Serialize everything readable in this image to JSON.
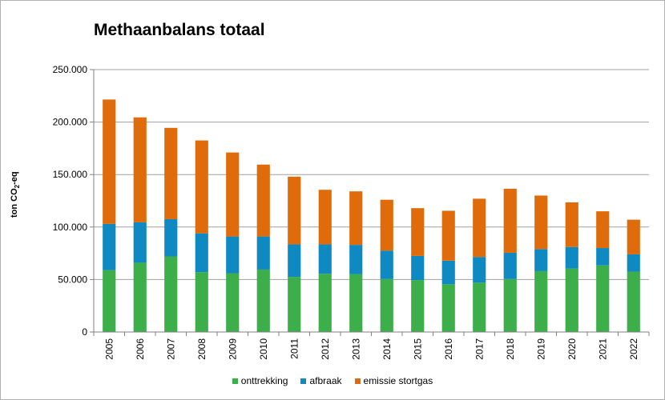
{
  "chart_data": {
    "type": "bar",
    "stacked": true,
    "title": "Methaanbalans totaal",
    "ylabel_main": "ton CO",
    "ylabel_sub": "2",
    "ylabel_tail": "-eq",
    "xlabel": "",
    "ylim": [
      0,
      250000
    ],
    "yticks": [
      0,
      50000,
      100000,
      150000,
      200000,
      250000
    ],
    "ytick_labels": [
      "0",
      "50.000",
      "100.000",
      "150.000",
      "200.000",
      "250.000"
    ],
    "grid": true,
    "legend_position": "bottom",
    "categories": [
      "2005",
      "2006",
      "2007",
      "2008",
      "2009",
      "2010",
      "2011",
      "2012",
      "2013",
      "2014",
      "2015",
      "2016",
      "2017",
      "2018",
      "2019",
      "2020",
      "2021",
      "2022"
    ],
    "series": [
      {
        "name": "onttrekking",
        "color": "#3cae4a",
        "values": [
          59000,
          66000,
          72000,
          57000,
          56000,
          59500,
          52500,
          55500,
          55000,
          50500,
          49500,
          45500,
          47000,
          50500,
          58000,
          60500,
          63500,
          57500
        ]
      },
      {
        "name": "afbraak",
        "color": "#0e89c1",
        "values": [
          44000,
          38500,
          35500,
          37000,
          35000,
          31500,
          31000,
          28000,
          28000,
          27000,
          23000,
          22500,
          24500,
          25000,
          21000,
          20500,
          16500,
          16500
        ]
      },
      {
        "name": "emissie stortgas",
        "color": "#e06b0a",
        "values": [
          118500,
          100000,
          87000,
          88500,
          80000,
          68500,
          64500,
          52000,
          51000,
          48500,
          45500,
          47500,
          55500,
          61000,
          51000,
          42500,
          35000,
          33000
        ]
      }
    ]
  }
}
